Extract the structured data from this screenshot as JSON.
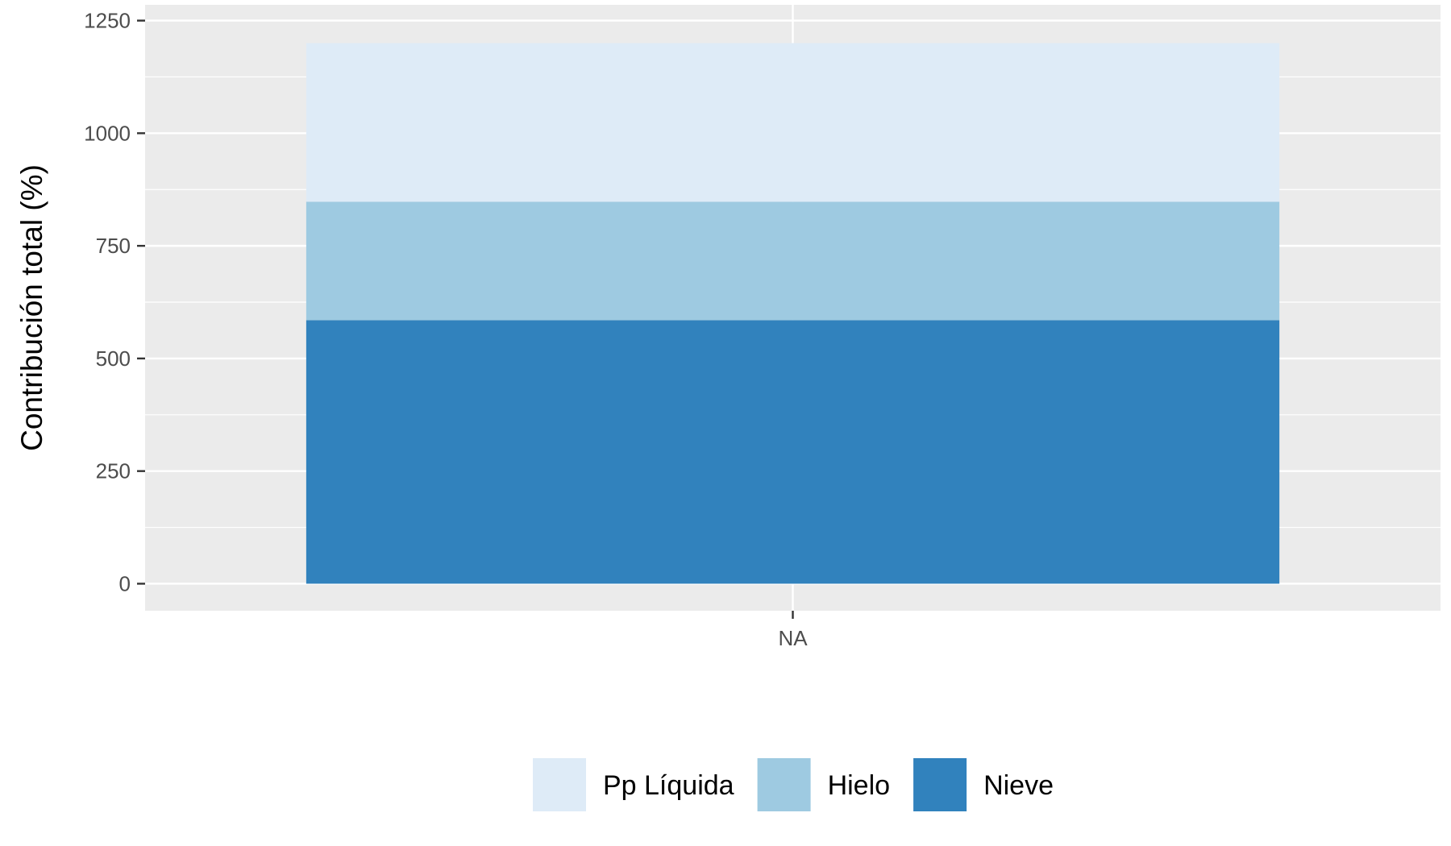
{
  "chart_data": {
    "type": "bar",
    "stacked": true,
    "categories": [
      "NA"
    ],
    "series": [
      {
        "name": "Nieve",
        "values": [
          585
        ],
        "color": "#3182bd"
      },
      {
        "name": "Hielo",
        "values": [
          263
        ],
        "color": "#9ecae1"
      },
      {
        "name": "Pp Líquida",
        "values": [
          352
        ],
        "color": "#deebf7"
      }
    ],
    "title": "",
    "xlabel": "",
    "ylabel": "Contribución total (%)",
    "ylim": [
      -60,
      1250
    ],
    "yticks": [
      0,
      250,
      500,
      750,
      1000,
      1250
    ],
    "grid": true,
    "legend_position": "bottom",
    "legend_order": [
      "Pp Líquida",
      "Hielo",
      "Nieve"
    ],
    "panel_background": "#ebebeb"
  }
}
